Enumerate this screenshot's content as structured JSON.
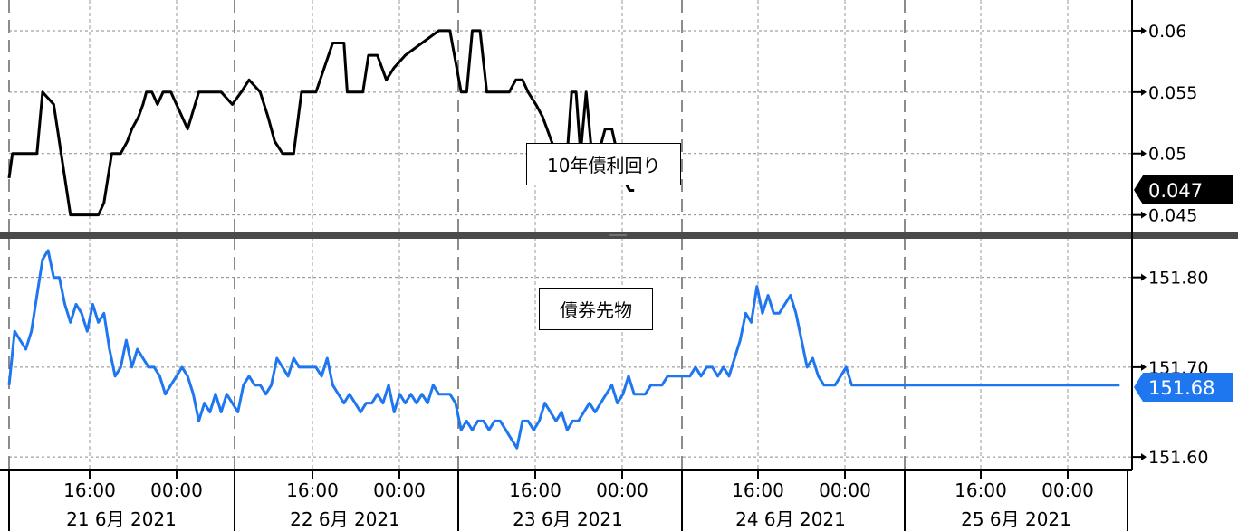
{
  "chart_data": [
    {
      "type": "line",
      "title": "10年債利回り",
      "ylim": [
        0.0435,
        0.0625
      ],
      "yticks": [
        0.045,
        0.05,
        0.055,
        0.06
      ],
      "ytick_labels": [
        "0.045",
        "0.05",
        "0.055",
        "0.06"
      ],
      "last_value_label": "0.047",
      "line_color": "#000000",
      "x": [
        0.0,
        0.03,
        0.1,
        0.25,
        0.3,
        0.4,
        0.55,
        0.68,
        0.8,
        0.85,
        0.92,
        1.0,
        1.06,
        1.1,
        1.16,
        1.2,
        1.23,
        1.28,
        1.33,
        1.38,
        1.45,
        1.6,
        1.7,
        1.8,
        1.9,
        2.0,
        2.08,
        2.15,
        2.25,
        2.32,
        2.38,
        2.45,
        2.55,
        2.62,
        2.75,
        2.9,
        3.0,
        3.03,
        3.07,
        3.12,
        3.17,
        3.22,
        3.3,
        3.38,
        3.45,
        3.55,
        3.7,
        3.85,
        3.95,
        4.05,
        4.1,
        4.15,
        4.22,
        4.28,
        4.36,
        4.42,
        4.48,
        4.54,
        4.6,
        4.65,
        4.72,
        4.78,
        4.82,
        4.86,
        4.9,
        4.95,
        5.0,
        5.04,
        5.08,
        5.12,
        5.17,
        5.22,
        5.28,
        5.34,
        5.4,
        5.45,
        5.5,
        5.56,
        5.6
      ],
      "y": [
        0.048,
        0.05,
        0.05,
        0.05,
        0.055,
        0.054,
        0.045,
        0.045,
        0.045,
        0.046,
        0.05,
        0.05,
        0.051,
        0.052,
        0.053,
        0.054,
        0.055,
        0.055,
        0.054,
        0.055,
        0.055,
        0.052,
        0.055,
        0.055,
        0.055,
        0.054,
        0.055,
        0.056,
        0.055,
        0.053,
        0.051,
        0.05,
        0.05,
        0.055,
        0.055,
        0.059,
        0.059,
        0.055,
        0.055,
        0.055,
        0.055,
        0.058,
        0.058,
        0.056,
        0.057,
        0.058,
        0.059,
        0.06,
        0.06,
        0.055,
        0.055,
        0.06,
        0.06,
        0.055,
        0.055,
        0.055,
        0.055,
        0.056,
        0.056,
        0.055,
        0.054,
        0.053,
        0.052,
        0.051,
        0.05,
        0.05,
        0.05,
        0.055,
        0.055,
        0.05,
        0.055,
        0.05,
        0.05,
        0.052,
        0.052,
        0.05,
        0.048,
        0.047,
        0.047
      ]
    },
    {
      "type": "line",
      "title": "債券先物",
      "ylim": [
        151.585,
        151.845
      ],
      "yticks": [
        151.6,
        151.7,
        151.8
      ],
      "ytick_labels": [
        "151.60",
        "151.70",
        "151.80"
      ],
      "last_value_label": "151.68",
      "line_color": "#1f77f0",
      "x": [
        0.0,
        0.05,
        0.1,
        0.15,
        0.2,
        0.25,
        0.3,
        0.35,
        0.4,
        0.45,
        0.5,
        0.55,
        0.6,
        0.65,
        0.7,
        0.75,
        0.8,
        0.85,
        0.9,
        0.95,
        1.0,
        1.05,
        1.1,
        1.15,
        1.2,
        1.25,
        1.3,
        1.35,
        1.4,
        1.45,
        1.5,
        1.55,
        1.6,
        1.65,
        1.7,
        1.75,
        1.8,
        1.85,
        1.9,
        1.95,
        2.0,
        2.05,
        2.1,
        2.15,
        2.2,
        2.25,
        2.3,
        2.35,
        2.4,
        2.45,
        2.5,
        2.55,
        2.6,
        2.65,
        2.7,
        2.75,
        2.8,
        2.85,
        2.9,
        2.95,
        3.0,
        3.05,
        3.1,
        3.15,
        3.2,
        3.25,
        3.3,
        3.35,
        3.4,
        3.45,
        3.5,
        3.55,
        3.6,
        3.65,
        3.7,
        3.75,
        3.8,
        3.85,
        3.9,
        3.95,
        4.0,
        4.05,
        4.1,
        4.15,
        4.2,
        4.25,
        4.3,
        4.35,
        4.4,
        4.45,
        4.5,
        4.55,
        4.6,
        4.65,
        4.7,
        4.75,
        4.8,
        4.85,
        4.9,
        4.95,
        5.0,
        5.05,
        5.1,
        5.15,
        5.2,
        5.25,
        5.3,
        5.35,
        5.4,
        5.45,
        5.5,
        5.55,
        5.6,
        5.65,
        5.7,
        5.75,
        5.8,
        5.85,
        5.9,
        5.95,
        6.0,
        6.05,
        6.1,
        6.15,
        6.2,
        6.25,
        6.3,
        6.35,
        6.4,
        6.45,
        6.5,
        6.55,
        6.6,
        6.65,
        6.7,
        6.75,
        6.8,
        6.85,
        6.9,
        6.95,
        7.0,
        7.05,
        7.1,
        7.15,
        7.2,
        7.25,
        7.3,
        7.35,
        7.4,
        7.45,
        7.5,
        7.55,
        7.6,
        7.65,
        7.7,
        7.75,
        7.8,
        7.85,
        7.9,
        7.95,
        8.0,
        8.05,
        8.1,
        8.15,
        8.2,
        8.25,
        8.3,
        8.35,
        8.4,
        8.45,
        8.5,
        8.55,
        8.6,
        8.65,
        8.7,
        8.75,
        8.8,
        8.85,
        8.9,
        8.95,
        9.0,
        9.05,
        9.1,
        9.15,
        9.2,
        9.25,
        9.3,
        9.35,
        9.4,
        9.45,
        9.5,
        9.55,
        9.6,
        9.65,
        9.7,
        9.75,
        9.8,
        9.85,
        9.9,
        9.95,
        10.0
      ],
      "y": [
        151.68,
        151.74,
        151.73,
        151.72,
        151.74,
        151.78,
        151.82,
        151.83,
        151.8,
        151.8,
        151.77,
        151.75,
        151.77,
        151.76,
        151.74,
        151.77,
        151.75,
        151.76,
        151.72,
        151.69,
        151.7,
        151.73,
        151.7,
        151.72,
        151.71,
        151.7,
        151.7,
        151.69,
        151.67,
        151.68,
        151.69,
        151.7,
        151.69,
        151.67,
        151.64,
        151.66,
        151.65,
        151.67,
        151.65,
        151.67,
        151.66,
        151.65,
        151.68,
        151.69,
        151.68,
        151.68,
        151.67,
        151.68,
        151.71,
        151.7,
        151.69,
        151.71,
        151.7,
        151.7,
        151.7,
        151.7,
        151.69,
        151.71,
        151.68,
        151.67,
        151.66,
        151.67,
        151.66,
        151.65,
        151.66,
        151.66,
        151.67,
        151.66,
        151.68,
        151.65,
        151.67,
        151.66,
        151.67,
        151.66,
        151.67,
        151.66,
        151.68,
        151.67,
        151.67,
        151.67,
        151.66,
        151.63,
        151.64,
        151.63,
        151.64,
        151.64,
        151.63,
        151.64,
        151.64,
        151.63,
        151.62,
        151.61,
        151.64,
        151.64,
        151.63,
        151.64,
        151.66,
        151.65,
        151.64,
        151.65,
        151.63,
        151.64,
        151.64,
        151.65,
        151.66,
        151.65,
        151.66,
        151.67,
        151.68,
        151.66,
        151.67,
        151.69,
        151.67,
        151.67,
        151.67,
        151.68,
        151.68,
        151.68,
        151.69,
        151.69,
        151.69,
        151.69,
        151.69,
        151.7,
        151.69,
        151.7,
        151.7,
        151.69,
        151.7,
        151.69,
        151.71,
        151.73,
        151.76,
        151.75,
        151.79,
        151.76,
        151.78,
        151.76,
        151.76,
        151.77,
        151.78,
        151.76,
        151.73,
        151.7,
        151.71,
        151.69,
        151.68,
        151.68,
        151.68,
        151.69,
        151.7,
        151.68,
        151.68,
        151.68,
        151.68,
        151.68,
        151.68,
        151.68,
        151.68,
        151.68,
        151.68,
        151.68,
        151.68,
        151.68,
        151.68,
        151.68,
        151.68,
        151.68,
        151.68,
        151.68,
        151.68,
        151.68,
        151.68,
        151.68,
        151.68,
        151.68,
        151.68,
        151.68,
        151.68,
        151.68,
        151.68,
        151.68,
        151.68,
        151.68,
        151.68,
        151.68,
        151.68,
        151.68,
        151.68,
        151.68,
        151.68,
        151.68,
        151.68,
        151.68,
        151.68,
        151.68,
        151.68,
        151.68,
        151.68,
        151.68,
        151.68
      ]
    }
  ],
  "x_axis": {
    "time_labels": [
      "16:00",
      "00:00",
      "16:00",
      "00:00",
      "16:00",
      "00:00",
      "16:00",
      "00:00",
      "16:00",
      "00:00"
    ],
    "date_labels": [
      "21 6月 2021",
      "22 6月 2021",
      "23 6月 2021",
      "24 6月 2021",
      "25 6月 2021"
    ]
  }
}
